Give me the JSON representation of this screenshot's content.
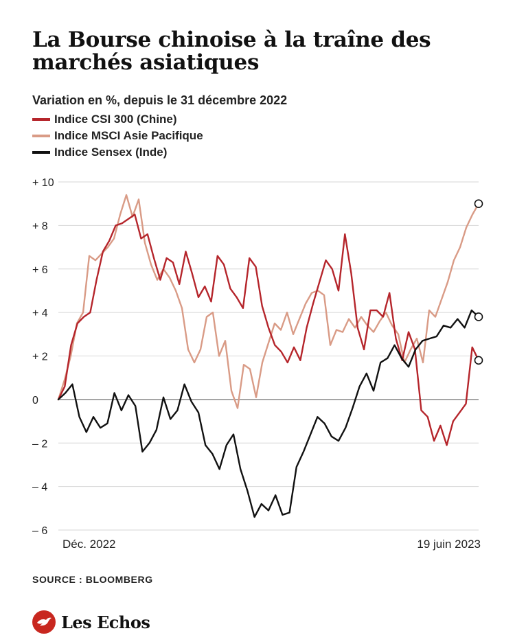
{
  "header": {
    "title": "La Bourse chinoise à la traîne des marchés asiatiques",
    "subtitle": "Variation en %, depuis le 31 décembre 2022"
  },
  "legend": [
    {
      "label": "Indice CSI 300 (Chine)",
      "color": "#b5252b"
    },
    {
      "label": "Indice MSCI Asie Pacifique",
      "color": "#d99b86"
    },
    {
      "label": "Indice Sensex (Inde)",
      "color": "#111111"
    }
  ],
  "footer": {
    "source": "SOURCE : BLOOMBERG",
    "brand": "Les Echos",
    "brand_icon": "les-echos-bird-icon"
  },
  "chart_data": {
    "type": "line",
    "x_start_label": "Déc. 2022",
    "x_end_label": "19 juin 2023",
    "ylim": [
      -6,
      10
    ],
    "yticks": [
      {
        "value": 10,
        "label": "+ 10"
      },
      {
        "value": 8,
        "label": "+ 8"
      },
      {
        "value": 6,
        "label": "+ 6"
      },
      {
        "value": 4,
        "label": "+ 4"
      },
      {
        "value": 2,
        "label": "+ 2"
      },
      {
        "value": 0,
        "label": "0"
      },
      {
        "value": -2,
        "label": "– 2"
      },
      {
        "value": -4,
        "label": "– 4"
      },
      {
        "value": -6,
        "label": "– 6"
      }
    ],
    "grid": true,
    "end_markers": true,
    "series": [
      {
        "name": "Indice CSI 300 (Chine)",
        "color": "#b5252b",
        "values": [
          0,
          0.6,
          2.5,
          3.5,
          3.8,
          4,
          5.5,
          6.8,
          7.3,
          8.0,
          8.1,
          8.3,
          8.5,
          7.4,
          7.6,
          6.5,
          5.5,
          6.5,
          6.3,
          5.3,
          6.8,
          5.8,
          4.7,
          5.2,
          4.5,
          6.6,
          6.2,
          5.1,
          4.7,
          4.2,
          6.5,
          6.1,
          4.3,
          3.3,
          2.5,
          2.2,
          1.7,
          2.4,
          1.8,
          3.3,
          4.4,
          5.4,
          6.4,
          6.0,
          5.0,
          7.6,
          5.8,
          3.3,
          2.3,
          4.1,
          4.1,
          3.8,
          4.9,
          2.8,
          1.8,
          3.1,
          2.3,
          -0.5,
          -0.8,
          -1.9,
          -1.2,
          -2.1,
          -1.0,
          -0.6,
          -0.2,
          2.4,
          1.8
        ]
      },
      {
        "name": "Indice MSCI Asie Pacifique",
        "color": "#d99b86",
        "values": [
          0,
          0.9,
          2.0,
          3.5,
          4.0,
          6.6,
          6.4,
          6.7,
          7.0,
          7.4,
          8.5,
          9.4,
          8.4,
          9.2,
          7.2,
          6.2,
          5.5,
          6.0,
          5.6,
          5.0,
          4.2,
          2.3,
          1.7,
          2.3,
          3.8,
          4.0,
          2.0,
          2.7,
          0.4,
          -0.4,
          1.6,
          1.4,
          0.1,
          1.7,
          2.6,
          3.5,
          3.2,
          4.0,
          3.0,
          3.7,
          4.4,
          4.9,
          5.0,
          4.8,
          2.5,
          3.2,
          3.1,
          3.7,
          3.3,
          3.8,
          3.4,
          3.1,
          3.6,
          4.0,
          3.4,
          3.0,
          1.7,
          2.3,
          2.8,
          1.7,
          4.1,
          3.8,
          4.6,
          5.4,
          6.4,
          7.0,
          7.9,
          8.5,
          9.0
        ]
      },
      {
        "name": "Indice Sensex (Inde)",
        "color": "#111111",
        "values": [
          0,
          0.3,
          0.7,
          -0.8,
          -1.5,
          -0.8,
          -1.3,
          -1.1,
          0.3,
          -0.5,
          0.2,
          -0.3,
          -2.4,
          -2.0,
          -1.4,
          0.1,
          -0.9,
          -0.5,
          0.7,
          -0.1,
          -0.6,
          -2.1,
          -2.5,
          -3.2,
          -2.1,
          -1.6,
          -3.2,
          -4.2,
          -5.4,
          -4.8,
          -5.1,
          -4.4,
          -5.3,
          -5.2,
          -3.1,
          -2.4,
          -1.6,
          -0.8,
          -1.1,
          -1.7,
          -1.9,
          -1.3,
          -0.4,
          0.6,
          1.2,
          0.4,
          1.7,
          1.9,
          2.5,
          1.9,
          1.5,
          2.3,
          2.7,
          2.8,
          2.9,
          3.4,
          3.3,
          3.7,
          3.3,
          4.1,
          3.8
        ]
      }
    ]
  }
}
